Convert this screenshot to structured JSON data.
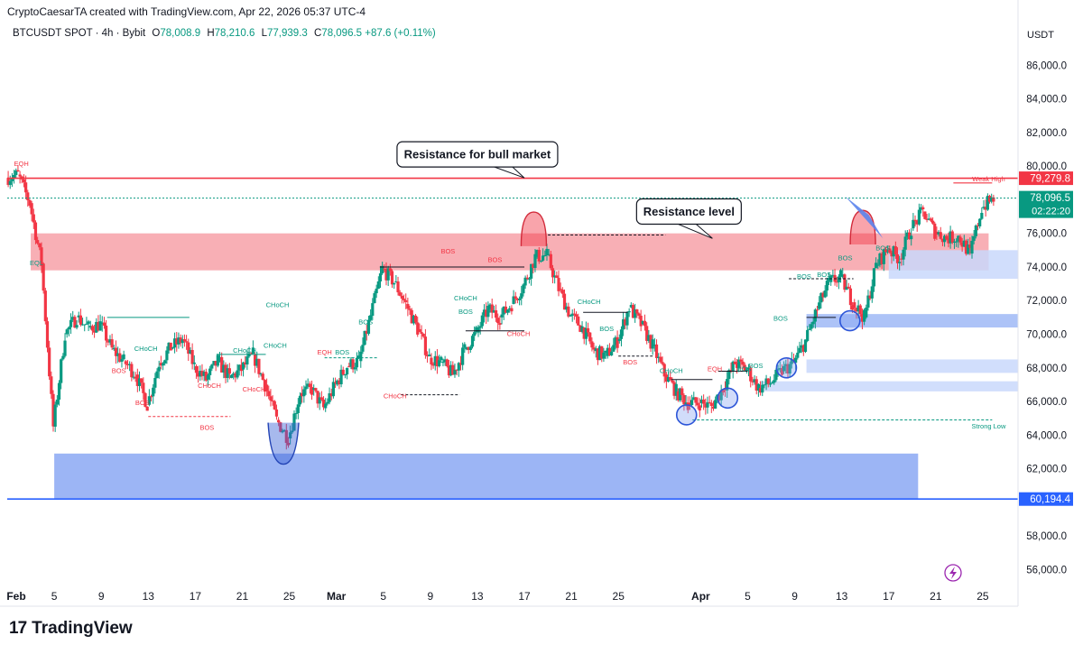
{
  "header": {
    "credit": "CryptoCaesarTA created with TradingView.com, Apr 22, 2026 05:37 UTC-4",
    "symbol": "BTCUSDT SPOT · 4h · Bybit",
    "open_label": "O",
    "open": "78,008.9",
    "high_label": "H",
    "high": "78,210.6",
    "low_label": "L",
    "low": "77,939.3",
    "close_label": "C",
    "close": "78,096.5",
    "change": "+87.6 (+0.11%)"
  },
  "branding": {
    "logo": "17",
    "name": "TradingView"
  },
  "colors": {
    "up": "#089981",
    "down": "#f23645",
    "resistance_zone": "#f7a1a8",
    "support_zone": "#7b9cf2",
    "support_zone_light": "#cfdcfb",
    "marker": "#3c64d6",
    "text": "#131722"
  },
  "chart_data": {
    "type": "candlestick",
    "currency": "USDT",
    "ylim": [
      55000,
      87200
    ],
    "y_ticks": [
      "86,000.0",
      "84,000.0",
      "82,000.0",
      "80,000.0",
      "76,000.0",
      "74,000.0",
      "72,000.0",
      "70,000.0",
      "68,000.0",
      "66,000.0",
      "64,000.0",
      "62,000.0",
      "58,000.0",
      "56,000.0"
    ],
    "y_tick_values": [
      86000,
      84000,
      82000,
      80000,
      76000,
      74000,
      72000,
      70000,
      68000,
      66000,
      64000,
      62000,
      58000,
      56000
    ],
    "x_ticks": [
      {
        "label": "Feb",
        "day": 0,
        "bold": true
      },
      {
        "label": "5",
        "day": 4
      },
      {
        "label": "9",
        "day": 8
      },
      {
        "label": "13",
        "day": 12
      },
      {
        "label": "17",
        "day": 16
      },
      {
        "label": "21",
        "day": 20
      },
      {
        "label": "25",
        "day": 24
      },
      {
        "label": "Mar",
        "day": 28,
        "bold": true
      },
      {
        "label": "5",
        "day": 32
      },
      {
        "label": "9",
        "day": 36
      },
      {
        "label": "13",
        "day": 40
      },
      {
        "label": "17",
        "day": 44
      },
      {
        "label": "21",
        "day": 48
      },
      {
        "label": "25",
        "day": 52
      },
      {
        "label": "Apr",
        "day": 59,
        "bold": true
      },
      {
        "label": "5",
        "day": 63
      },
      {
        "label": "9",
        "day": 67
      },
      {
        "label": "13",
        "day": 71
      },
      {
        "label": "17",
        "day": 75
      },
      {
        "label": "21",
        "day": 79
      },
      {
        "label": "25",
        "day": 83
      }
    ],
    "price_path": [
      [
        0,
        79300
      ],
      [
        1,
        79500
      ],
      [
        2,
        77800
      ],
      [
        3,
        74200
      ],
      [
        4,
        64500
      ],
      [
        5,
        70000
      ],
      [
        6,
        71000
      ],
      [
        7,
        70400
      ],
      [
        8,
        70600
      ],
      [
        9,
        69100
      ],
      [
        10,
        68400
      ],
      [
        11,
        67600
      ],
      [
        12,
        65800
      ],
      [
        13,
        68300
      ],
      [
        14,
        69200
      ],
      [
        15,
        69700
      ],
      [
        16,
        68100
      ],
      [
        17,
        67300
      ],
      [
        18,
        68400
      ],
      [
        19,
        67400
      ],
      [
        20,
        67900
      ],
      [
        21,
        68800
      ],
      [
        22,
        67000
      ],
      [
        23,
        64900
      ],
      [
        24,
        63800
      ],
      [
        25,
        66500
      ],
      [
        26,
        66700
      ],
      [
        27,
        65600
      ],
      [
        28,
        67000
      ],
      [
        29,
        68100
      ],
      [
        30,
        68400
      ],
      [
        31,
        71100
      ],
      [
        32,
        73900
      ],
      [
        33,
        73100
      ],
      [
        34,
        71800
      ],
      [
        35,
        70300
      ],
      [
        36,
        68600
      ],
      [
        37,
        68300
      ],
      [
        38,
        67600
      ],
      [
        39,
        69100
      ],
      [
        40,
        70100
      ],
      [
        41,
        71500
      ],
      [
        42,
        71000
      ],
      [
        43,
        71800
      ],
      [
        44,
        72900
      ],
      [
        45,
        74600
      ],
      [
        46,
        74700
      ],
      [
        47,
        72700
      ],
      [
        48,
        71100
      ],
      [
        49,
        70400
      ],
      [
        50,
        69000
      ],
      [
        51,
        68700
      ],
      [
        52,
        69600
      ],
      [
        53,
        71600
      ],
      [
        54,
        70600
      ],
      [
        55,
        69300
      ],
      [
        56,
        67600
      ],
      [
        57,
        66600
      ],
      [
        58,
        65900
      ],
      [
        59,
        65900
      ],
      [
        60,
        65700
      ],
      [
        61,
        66800
      ],
      [
        62,
        68300
      ],
      [
        63,
        67900
      ],
      [
        64,
        66800
      ],
      [
        65,
        67100
      ],
      [
        66,
        67800
      ],
      [
        67,
        68300
      ],
      [
        68,
        69600
      ],
      [
        69,
        71500
      ],
      [
        70,
        73100
      ],
      [
        71,
        73400
      ],
      [
        72,
        71900
      ],
      [
        73,
        71000
      ],
      [
        74,
        74100
      ],
      [
        75,
        75100
      ],
      [
        76,
        74500
      ],
      [
        77,
        76300
      ],
      [
        78,
        77300
      ],
      [
        79,
        76100
      ],
      [
        80,
        75700
      ],
      [
        81,
        75800
      ],
      [
        82,
        74800
      ],
      [
        83,
        77500
      ],
      [
        84,
        78100
      ]
    ],
    "horizontal_lines": [
      {
        "name": "bull-resistance-line",
        "price": 79279.8,
        "label": "79,279.8",
        "color": "#f23645",
        "badge": true
      },
      {
        "name": "last-price-line",
        "price": 78096.5,
        "label": "78,096.5",
        "timer": "02:22:20",
        "color": "#089981",
        "badge": true,
        "dotted": true
      },
      {
        "name": "support-line",
        "price": 60194.4,
        "label": "60,194.4",
        "color": "#2962ff",
        "badge": true
      }
    ],
    "zones": [
      {
        "name": "resistance-zone",
        "from_day": 2,
        "to_day": 83.5,
        "top": 76000,
        "bottom": 73800,
        "color": "red"
      },
      {
        "name": "demand-zone-main",
        "from_day": 4,
        "to_day": 77.5,
        "top": 62900,
        "bottom": 60200,
        "color": "blue"
      },
      {
        "name": "demand-zone-1",
        "from_day": 75,
        "to_day": 86,
        "top": 75000,
        "bottom": 73300,
        "color": "bluelight"
      },
      {
        "name": "demand-zone-2",
        "from_day": 68,
        "to_day": 86,
        "top": 71200,
        "bottom": 70400,
        "color": "bluemid"
      },
      {
        "name": "demand-zone-3",
        "from_day": 68,
        "to_day": 86,
        "top": 68500,
        "bottom": 67700,
        "color": "bluelight"
      },
      {
        "name": "demand-zone-4",
        "from_day": 64,
        "to_day": 86,
        "top": 67200,
        "bottom": 66600,
        "color": "bluelight"
      }
    ],
    "annotations": [
      {
        "name": "callout-bull-market",
        "text": "Resistance for bull market",
        "day": 40,
        "price": 80700
      },
      {
        "name": "callout-resistance-level",
        "text": "Resistance level",
        "day": 58,
        "price": 77300
      }
    ],
    "labels": [
      {
        "text": "EQH",
        "day": 1.2,
        "price": 80000,
        "color": "#f23645"
      },
      {
        "text": "EQL",
        "day": 2.5,
        "price": 74100,
        "color": "#089981"
      },
      {
        "text": "BOS",
        "day": 37.5,
        "price": 74800,
        "color": "#f23645"
      },
      {
        "text": "CHoCH",
        "day": 23,
        "price": 71600,
        "color": "#089981"
      },
      {
        "text": "CHoCH",
        "day": 11.8,
        "price": 69000,
        "color": "#089981"
      },
      {
        "text": "BOS",
        "day": 9.5,
        "price": 67700,
        "color": "#f23645"
      },
      {
        "text": "BOS",
        "day": 11.5,
        "price": 65800,
        "color": "#f23645"
      },
      {
        "text": "BOS",
        "day": 17,
        "price": 64300,
        "color": "#f23645"
      },
      {
        "text": "CHoCH",
        "day": 17.2,
        "price": 66800,
        "color": "#f23645"
      },
      {
        "text": "CHoCH",
        "day": 20.2,
        "price": 68900,
        "color": "#089981"
      },
      {
        "text": "CHoCH",
        "day": 22.8,
        "price": 69200,
        "color": "#089981"
      },
      {
        "text": "CHoCH",
        "day": 21,
        "price": 66600,
        "color": "#f23645"
      },
      {
        "text": "EQH",
        "day": 27,
        "price": 68800,
        "color": "#f23645"
      },
      {
        "text": "BOS",
        "day": 28.5,
        "price": 68800,
        "color": "#089981"
      },
      {
        "text": "BOS",
        "day": 30.5,
        "price": 70600,
        "color": "#089981"
      },
      {
        "text": "CHoCH",
        "day": 33,
        "price": 66200,
        "color": "#f23645"
      },
      {
        "text": "CHoCH",
        "day": 39,
        "price": 72000,
        "color": "#089981"
      },
      {
        "text": "BOS",
        "day": 39,
        "price": 71200,
        "color": "#089981"
      },
      {
        "text": "BOS",
        "day": 41.5,
        "price": 74300,
        "color": "#f23645"
      },
      {
        "text": "CHoCH",
        "day": 43.5,
        "price": 69900,
        "color": "#f23645"
      },
      {
        "text": "CHoCH",
        "day": 49.5,
        "price": 71800,
        "color": "#089981"
      },
      {
        "text": "BOS",
        "day": 51,
        "price": 70200,
        "color": "#089981"
      },
      {
        "text": "BOS",
        "day": 53,
        "price": 68200,
        "color": "#f23645"
      },
      {
        "text": "CHoCH",
        "day": 56.5,
        "price": 67700,
        "color": "#089981"
      },
      {
        "text": "EQH",
        "day": 60.2,
        "price": 67800,
        "color": "#f23645"
      },
      {
        "text": "BOS",
        "day": 62.7,
        "price": 67800,
        "color": "#089981"
      },
      {
        "text": "BOS",
        "day": 63.7,
        "price": 68000,
        "color": "#089981"
      },
      {
        "text": "BOS",
        "day": 65.8,
        "price": 70800,
        "color": "#089981"
      },
      {
        "text": "BOS",
        "day": 67.8,
        "price": 73300,
        "color": "#089981"
      },
      {
        "text": "BOS",
        "day": 69.5,
        "price": 73400,
        "color": "#089981"
      },
      {
        "text": "BOS",
        "day": 71.3,
        "price": 74400,
        "color": "#089981"
      },
      {
        "text": "BOS",
        "day": 74.5,
        "price": 75000,
        "color": "#089981"
      },
      {
        "text": "Weak High",
        "day": 83.5,
        "price": 79100,
        "color": "#f23645"
      },
      {
        "text": "Strong Low",
        "day": 83.5,
        "price": 64400,
        "color": "#089981"
      }
    ],
    "circles": [
      {
        "name": "swing-circle-1",
        "day": 57.8,
        "price": 65200
      },
      {
        "name": "swing-circle-2",
        "day": 61.3,
        "price": 66200
      },
      {
        "name": "swing-circle-3",
        "day": 66.3,
        "price": 68000
      },
      {
        "name": "swing-circle-4",
        "day": 71.7,
        "price": 70800
      }
    ],
    "arcs": [
      {
        "name": "top-arc-1",
        "day": 44.8,
        "price": 76300,
        "dir": "up",
        "color": "red"
      },
      {
        "name": "top-arc-2",
        "day": 72.8,
        "price": 76400,
        "dir": "up",
        "color": "red"
      },
      {
        "name": "bottom-arc",
        "day": 23.5,
        "price": 64200,
        "dir": "down",
        "color": "blue"
      }
    ]
  }
}
